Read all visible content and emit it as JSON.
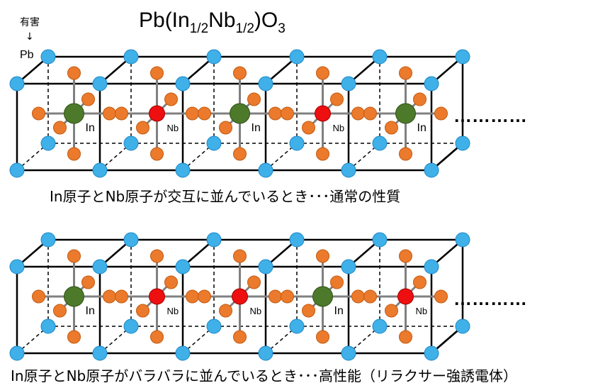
{
  "title": {
    "prefix": "Pb(In",
    "sub1": "1/2",
    "mid": "Nb",
    "sub2": "1/2",
    "suffix": ")O",
    "sub3": "3"
  },
  "annotation": {
    "label": "有害",
    "arrow": "↓",
    "pb_label": "Pb"
  },
  "lattices": [
    {
      "b_site_atoms": [
        "In",
        "Nb",
        "In",
        "Nb",
        "In"
      ],
      "caption": "In原子とNb原子が交互に並んでいるとき･･･通常の性質",
      "continuation": "…………"
    },
    {
      "b_site_atoms": [
        "In",
        "Nb",
        "Nb",
        "In",
        "Nb"
      ],
      "caption": "In原子とNb原子がバラバラに並んでいるとき･･･高性能（リラクサー強誘電体）",
      "continuation": "…………"
    }
  ],
  "colors": {
    "pb": "#3fb0e8",
    "pb_stroke": "#1e88c8",
    "oxygen": "#ec7a2c",
    "oxygen_stroke": "#c05a10",
    "In": "#4d7a2a",
    "Nb": "#ee1010",
    "bond": "#808080",
    "edge": "#000000"
  }
}
